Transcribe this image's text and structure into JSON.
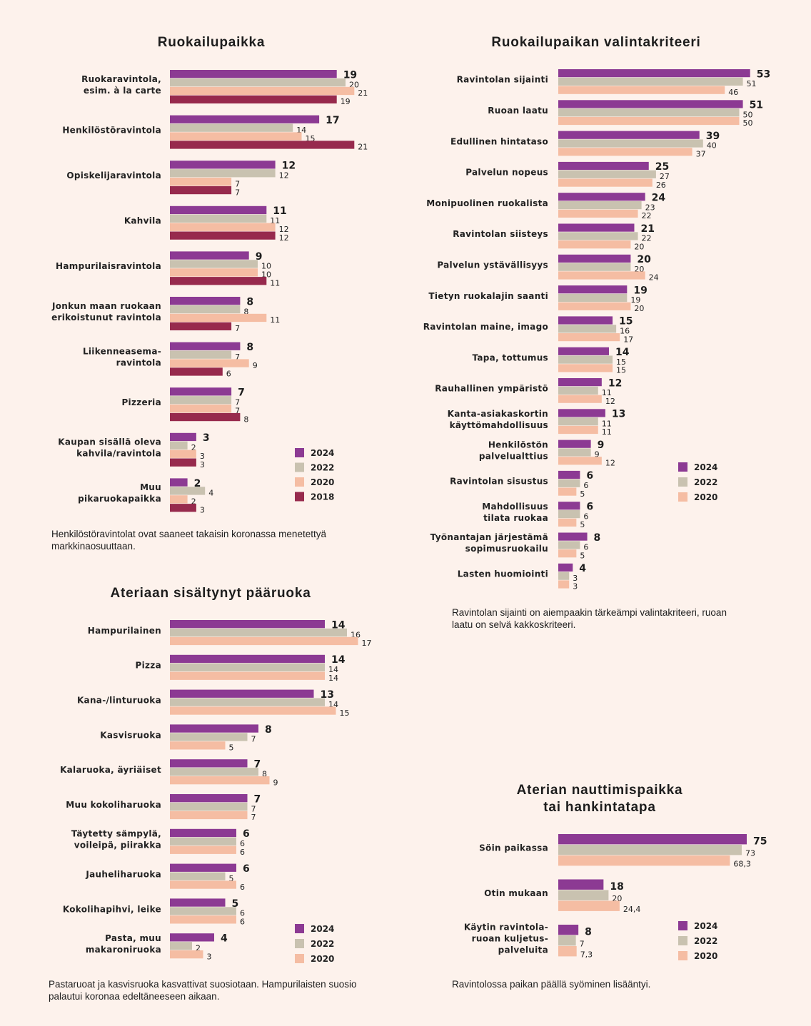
{
  "colors": {
    "2024": "#8c3a93",
    "2022": "#c9c2b0",
    "2020": "#f5bda3",
    "2018": "#972a4d"
  },
  "chart_data": [
    {
      "id": "ruokailupaikka",
      "type": "bar",
      "orientation": "horizontal",
      "title": "Ruokailupaikka",
      "caption": "Henkilöstöravintolat ovat saaneet takaisin koronassa menetettyä markkinaosuuttaan.",
      "legend": [
        "2024",
        "2022",
        "2020",
        "2018"
      ],
      "categories": [
        "Ruokaravintola,\nesim. à la carte",
        "Henkilöstöravintola",
        "Opiskelijaravintola",
        "Kahvila",
        "Hampurilaisravintola",
        "Jonkun maan ruokaan\nerikoistunut ravintola",
        "Liikenneasema-\nravintola",
        "Pizzeria",
        "Kaupan sisällä oleva\nkahvila/ravintola",
        "Muu\npikaruokapaikka"
      ],
      "series": [
        {
          "name": "2024",
          "values": [
            19,
            17,
            12,
            11,
            9,
            8,
            8,
            7,
            3,
            2
          ]
        },
        {
          "name": "2022",
          "values": [
            20,
            14,
            12,
            11,
            10,
            8,
            7,
            7,
            2,
            4
          ]
        },
        {
          "name": "2020",
          "values": [
            21,
            15,
            7,
            12,
            10,
            11,
            9,
            7,
            3,
            2
          ]
        },
        {
          "name": "2018",
          "values": [
            19,
            21,
            7,
            12,
            11,
            7,
            6,
            8,
            3,
            3
          ]
        }
      ]
    },
    {
      "id": "valintakriteeri",
      "type": "bar",
      "orientation": "horizontal",
      "title": "Ruokailupaikan valintakriteeri",
      "caption": "Ravintolan sijainti on aiempaakin tärkeämpi valintakriteeri, ruoan laatu on selvä kakkoskriteeri.",
      "legend": [
        "2024",
        "2022",
        "2020"
      ],
      "categories": [
        "Ravintolan sijainti",
        "Ruoan laatu",
        "Edullinen hintataso",
        "Palvelun nopeus",
        "Monipuolinen ruokalista",
        "Ravintolan siisteys",
        "Palvelun ystävällisyys",
        "Tietyn ruokalajin saanti",
        "Ravintolan maine, imago",
        "Tapa, tottumus",
        "Rauhallinen ympäristö",
        "Kanta-asiakaskortin\nkäyttömahdollisuus",
        "Henkilöstön\npalvelualttius",
        "Ravintolan sisustus",
        "Mahdollisuus\ntilata ruokaa",
        "Työnantajan järjestämä\nsopimusruokailu",
        "Lasten huomiointi"
      ],
      "series": [
        {
          "name": "2024",
          "values": [
            53,
            51,
            39,
            25,
            24,
            21,
            20,
            19,
            15,
            14,
            12,
            13,
            9,
            6,
            6,
            8,
            4
          ]
        },
        {
          "name": "2022",
          "values": [
            51,
            50,
            40,
            27,
            23,
            22,
            20,
            19,
            16,
            15,
            11,
            11,
            9,
            6,
            6,
            6,
            3
          ]
        },
        {
          "name": "2020",
          "values": [
            46,
            50,
            37,
            26,
            22,
            20,
            24,
            20,
            17,
            15,
            12,
            11,
            12,
            5,
            5,
            5,
            3
          ]
        }
      ]
    },
    {
      "id": "paaruoka",
      "type": "bar",
      "orientation": "horizontal",
      "title": "Ateriaan sisältynyt pääruoka",
      "caption": "Pastaruoat ja kasvisruoka kasvattivat suosiotaan. Hampurilaisten suosio palautui koronaa edeltäneeseen aikaan.",
      "legend": [
        "2024",
        "2022",
        "2020"
      ],
      "categories": [
        "Hampurilainen",
        "Pizza",
        "Kana-/linturuoka",
        "Kasvisruoka",
        "Kalaruoka, äyriäiset",
        "Muu kokoliharuoka",
        "Täytetty sämpylä,\nvoileipä, piirakka",
        "Jauheliharuoka",
        "Kokolihapihvi, leike",
        "Pasta, muu\nmakaroniruoka"
      ],
      "series": [
        {
          "name": "2024",
          "values": [
            14,
            14,
            13,
            8,
            7,
            7,
            6,
            6,
            5,
            4
          ]
        },
        {
          "name": "2022",
          "values": [
            16,
            14,
            14,
            7,
            8,
            7,
            6,
            5,
            6,
            2
          ]
        },
        {
          "name": "2020",
          "values": [
            17,
            14,
            15,
            5,
            9,
            7,
            6,
            6,
            6,
            3
          ]
        }
      ]
    },
    {
      "id": "nauttimispaikka",
      "type": "bar",
      "orientation": "horizontal",
      "title": "Aterian nauttimispaikka\ntai hankintatapa",
      "caption": "Ravintolossa paikan päällä syöminen lisääntyi.",
      "legend": [
        "2024",
        "2022",
        "2020"
      ],
      "categories": [
        "Söin paikassa",
        "Otin mukaan",
        "Käytin ravintola-\nruoan kuljetus-\npalveluita"
      ],
      "series": [
        {
          "name": "2024",
          "values": [
            "75",
            "18",
            "8"
          ]
        },
        {
          "name": "2022",
          "values": [
            "73",
            "20",
            "7"
          ]
        },
        {
          "name": "2020",
          "values": [
            "68,3",
            "24,4",
            "7,3"
          ]
        }
      ]
    }
  ]
}
